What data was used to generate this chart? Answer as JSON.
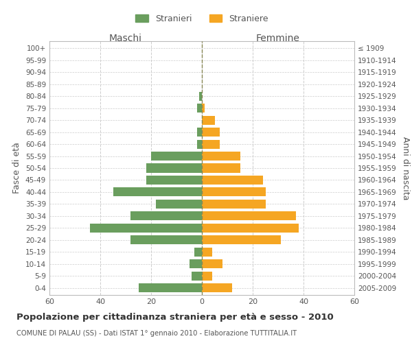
{
  "age_groups": [
    "0-4",
    "5-9",
    "10-14",
    "15-19",
    "20-24",
    "25-29",
    "30-34",
    "35-39",
    "40-44",
    "45-49",
    "50-54",
    "55-59",
    "60-64",
    "65-69",
    "70-74",
    "75-79",
    "80-84",
    "85-89",
    "90-94",
    "95-99",
    "100+"
  ],
  "birth_years": [
    "2005-2009",
    "2000-2004",
    "1995-1999",
    "1990-1994",
    "1985-1989",
    "1980-1984",
    "1975-1979",
    "1970-1974",
    "1965-1969",
    "1960-1964",
    "1955-1959",
    "1950-1954",
    "1945-1949",
    "1940-1944",
    "1935-1939",
    "1930-1934",
    "1925-1929",
    "1920-1924",
    "1915-1919",
    "1910-1914",
    "≤ 1909"
  ],
  "maschi": [
    25,
    4,
    5,
    3,
    28,
    44,
    28,
    18,
    35,
    22,
    22,
    20,
    2,
    2,
    0,
    2,
    1,
    0,
    0,
    0,
    0
  ],
  "femmine": [
    12,
    4,
    8,
    4,
    31,
    38,
    37,
    25,
    25,
    24,
    15,
    15,
    7,
    7,
    5,
    1,
    0,
    0,
    0,
    0,
    0
  ],
  "maschi_color": "#6a9e5e",
  "femmine_color": "#f5a623",
  "title": "Popolazione per cittadinanza straniera per età e sesso - 2010",
  "subtitle": "COMUNE DI PALAU (SS) - Dati ISTAT 1° gennaio 2010 - Elaborazione TUTTITALIA.IT",
  "ylabel_left": "Fasce di età",
  "ylabel_right": "Anni di nascita",
  "maschi_label": "Stranieri",
  "femmine_label": "Straniere",
  "maschi_header": "Maschi",
  "femmine_header": "Femmine",
  "xlim": 60,
  "grid_color": "#cccccc",
  "bg_color": "#ffffff",
  "border_color": "#bbbbbb"
}
